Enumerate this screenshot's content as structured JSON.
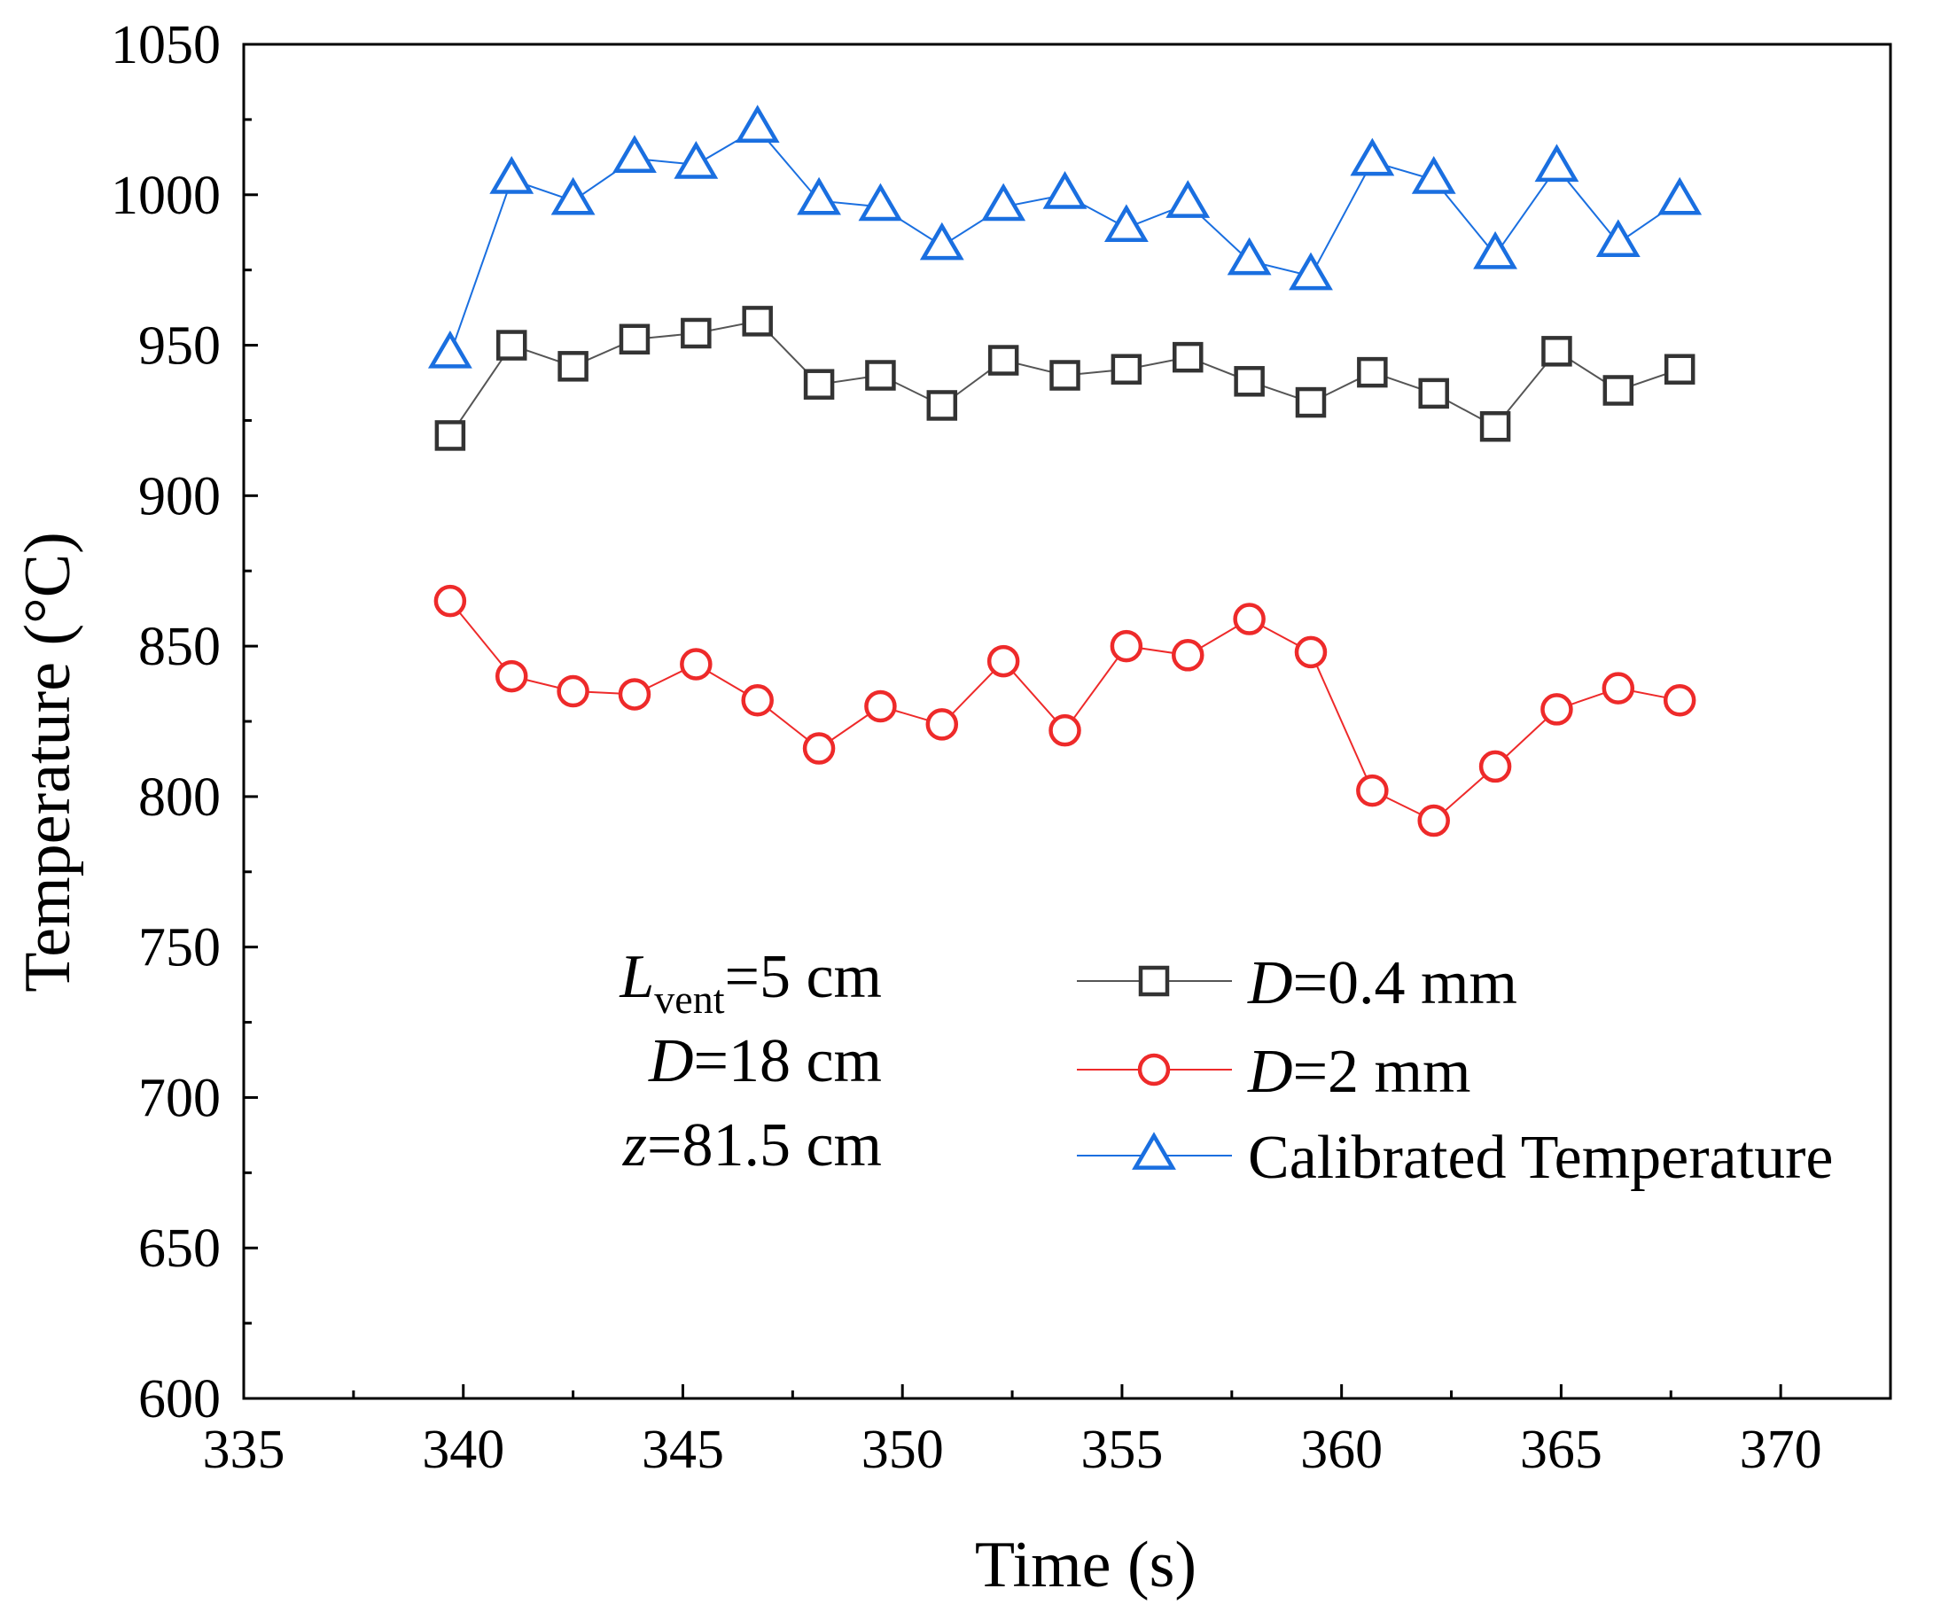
{
  "chart_data": {
    "type": "line",
    "xlabel": "Time (s)",
    "ylabel": "Temperature (°C)",
    "xlim": [
      335,
      372.5
    ],
    "ylim": [
      600,
      1050
    ],
    "x_ticks": [
      335,
      340,
      345,
      350,
      355,
      360,
      365,
      370
    ],
    "y_ticks": [
      600,
      650,
      700,
      750,
      800,
      850,
      900,
      950,
      1000,
      1050
    ],
    "grid": false,
    "legend_position": "center-right",
    "x": [
      339.7,
      341.1,
      342.5,
      343.9,
      345.3,
      346.7,
      348.1,
      349.5,
      350.9,
      352.3,
      353.7,
      355.1,
      356.5,
      357.9,
      359.3,
      360.7,
      362.1,
      363.5,
      364.9,
      366.3,
      367.7
    ],
    "series": [
      {
        "name": "D=0.4 mm",
        "name_parts": {
          "italic": "D",
          "rest": "=0.4 mm"
        },
        "marker": "square",
        "color": "#333333",
        "line_color": "#555555",
        "values": [
          920,
          950,
          943,
          952,
          954,
          958,
          937,
          940,
          930,
          945,
          940,
          942,
          946,
          938,
          931,
          941,
          934,
          923,
          948,
          935,
          942
        ]
      },
      {
        "name": "D=2 mm",
        "name_parts": {
          "italic": "D",
          "rest": "=2 mm"
        },
        "marker": "circle",
        "color": "#ee2a2a",
        "line_color": "#ee2a2a",
        "values": [
          865,
          840,
          835,
          834,
          844,
          832,
          816,
          830,
          824,
          845,
          822,
          850,
          847,
          859,
          848,
          802,
          792,
          810,
          829,
          836,
          832
        ]
      },
      {
        "name": "Calibrated Temperature",
        "name_parts": {
          "italic": "",
          "rest": "Calibrated Temperature"
        },
        "marker": "triangle",
        "color": "#1a6fe0",
        "line_color": "#1a6fe0",
        "values": [
          947,
          1005,
          998,
          1012,
          1010,
          1022,
          998,
          996,
          983,
          996,
          1000,
          989,
          997,
          978,
          973,
          1011,
          1005,
          980,
          1009,
          984,
          998
        ]
      }
    ],
    "annotations": [
      {
        "italic": "L",
        "sub": "vent",
        "rest": "=5 cm"
      },
      {
        "italic": "D",
        "sub": "",
        "rest": "=18 cm"
      },
      {
        "italic": "z",
        "sub": "",
        "rest": "=81.5 cm"
      }
    ]
  }
}
